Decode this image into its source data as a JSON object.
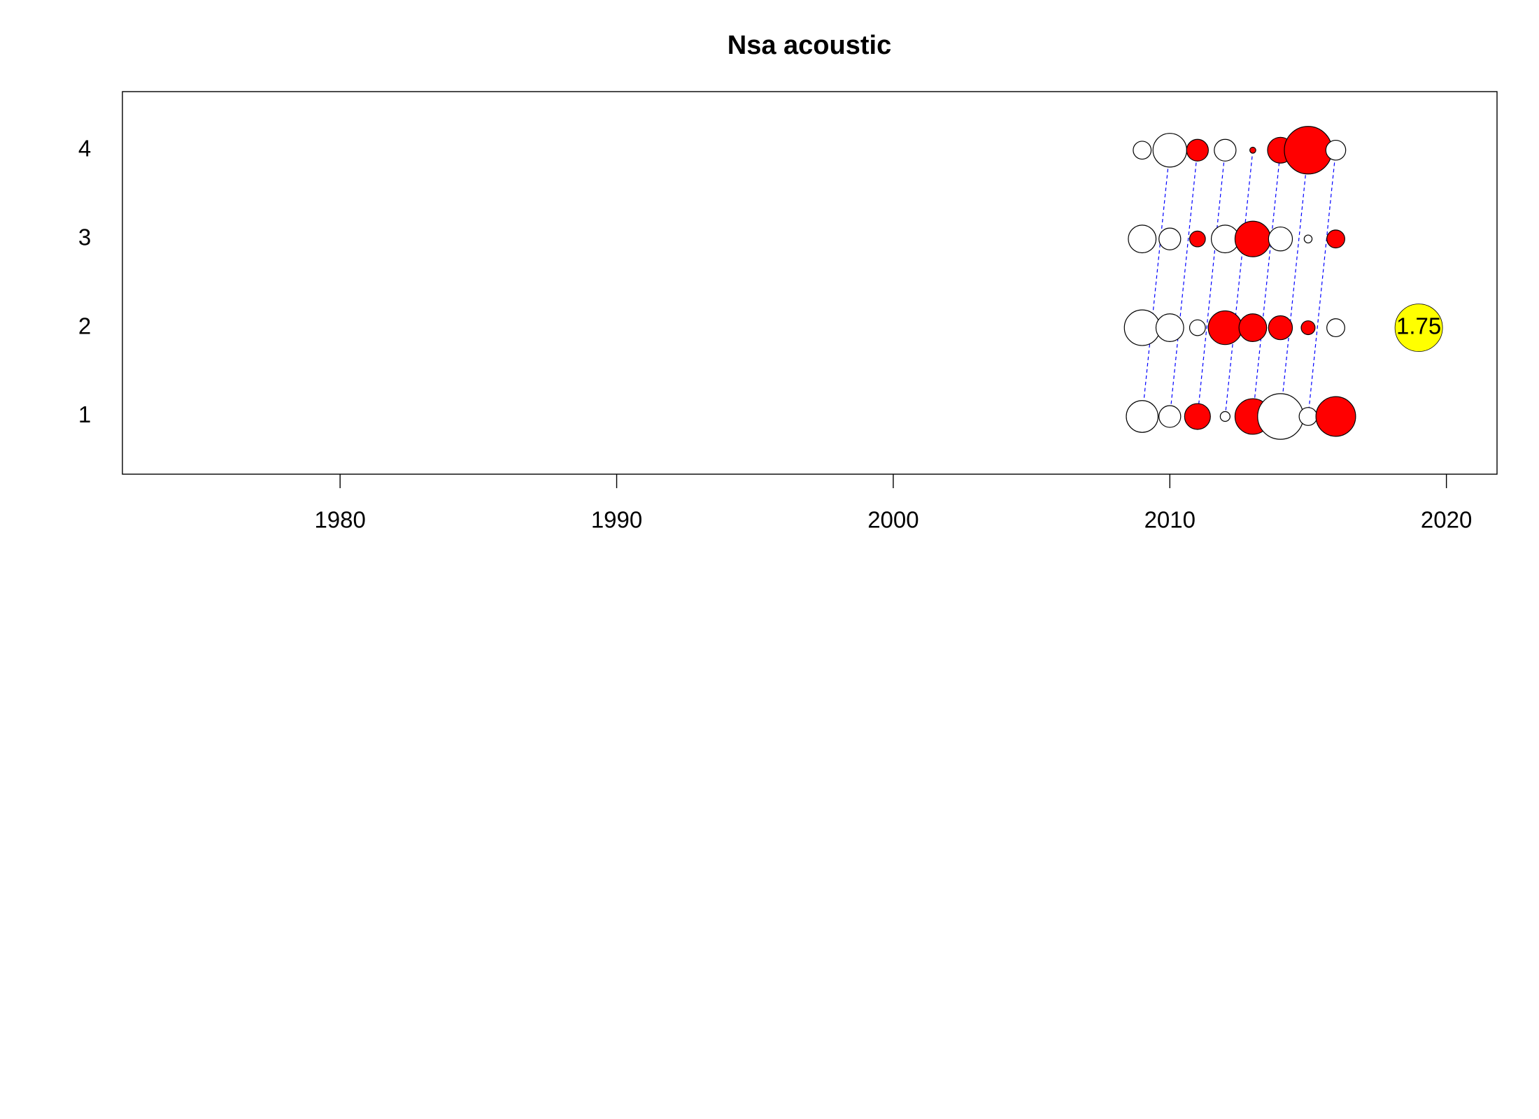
{
  "chart_data": {
    "type": "bubble",
    "title": "Nsa acoustic",
    "x": [
      2009,
      2010,
      2011,
      2012,
      2013,
      2014,
      2015,
      2016
    ],
    "y": [
      1,
      2,
      3,
      4
    ],
    "values": [
      [
        -1.17,
        -0.8,
        0.95,
        -0.36,
        1.31,
        -1.68,
        -0.66,
        1.46
      ],
      [
        -1.31,
        -1.02,
        -0.58,
        1.24,
        1.02,
        0.88,
        0.51,
        -0.66
      ],
      [
        -1.02,
        -0.8,
        0.58,
        -1.02,
        1.31,
        -0.88,
        -0.29,
        0.66
      ],
      [
        -0.66,
        -1.24,
        0.8,
        -0.8,
        0.22,
        0.95,
        1.75,
        -0.73
      ]
    ],
    "positive_color": "#ff0000",
    "negative_color": "#ffffff",
    "reference": {
      "x": 2019,
      "y": 2,
      "value": 1.75,
      "color": "#ffff00"
    },
    "xlim": [
      1972.13,
      2021.83
    ],
    "ylim": [
      0.35,
      4.66
    ],
    "xticks": [
      1980,
      1990,
      2000,
      2010,
      2020
    ],
    "yticks": [
      1,
      2,
      3,
      4
    ],
    "cohort_line_color": "#0000ff"
  }
}
